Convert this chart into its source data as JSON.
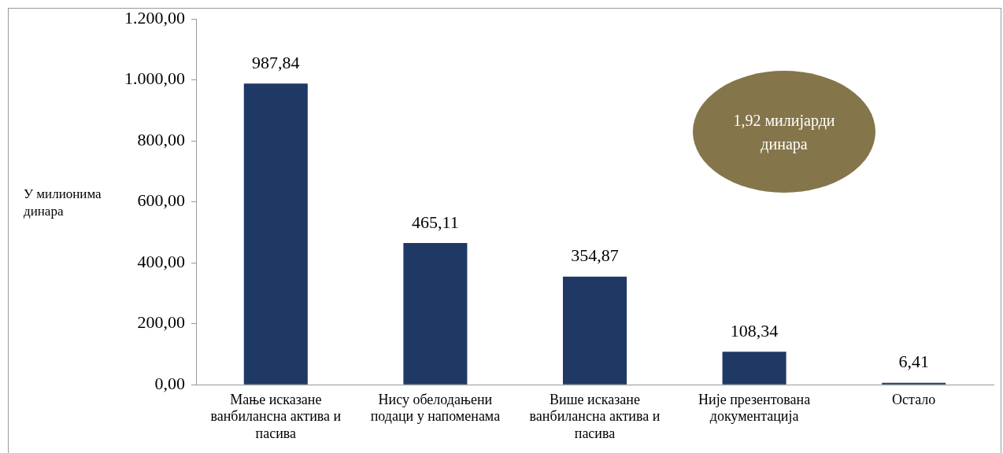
{
  "chart_data": {
    "type": "bar",
    "ylabel": "У милионима динара",
    "categories": [
      "Мање исказане ванбилансна актива и пасива",
      "Нису обелодањени подаци у напоменама",
      "Више исказане ванбилансна актива и пасива",
      "Није презентована документација",
      "Остало"
    ],
    "values": [
      987.84,
      465.11,
      354.87,
      108.34,
      6.41
    ],
    "value_labels": [
      "987,84",
      "465,11",
      "354,87",
      "108,34",
      "6,41"
    ],
    "color": "#1f3864",
    "ylim": [
      0,
      1200
    ],
    "yticks": [
      {
        "value": 0,
        "label": "0,00"
      },
      {
        "value": 200,
        "label": "200,00"
      },
      {
        "value": 400,
        "label": "400,00"
      },
      {
        "value": 600,
        "label": "600,00"
      },
      {
        "value": 800,
        "label": "800,00"
      },
      {
        "value": 1000,
        "label": "1.000,00"
      },
      {
        "value": 1200,
        "label": "1.200,00"
      }
    ],
    "grid": false,
    "legend": false,
    "annotations": [
      "1,92 милијарди динара"
    ]
  }
}
